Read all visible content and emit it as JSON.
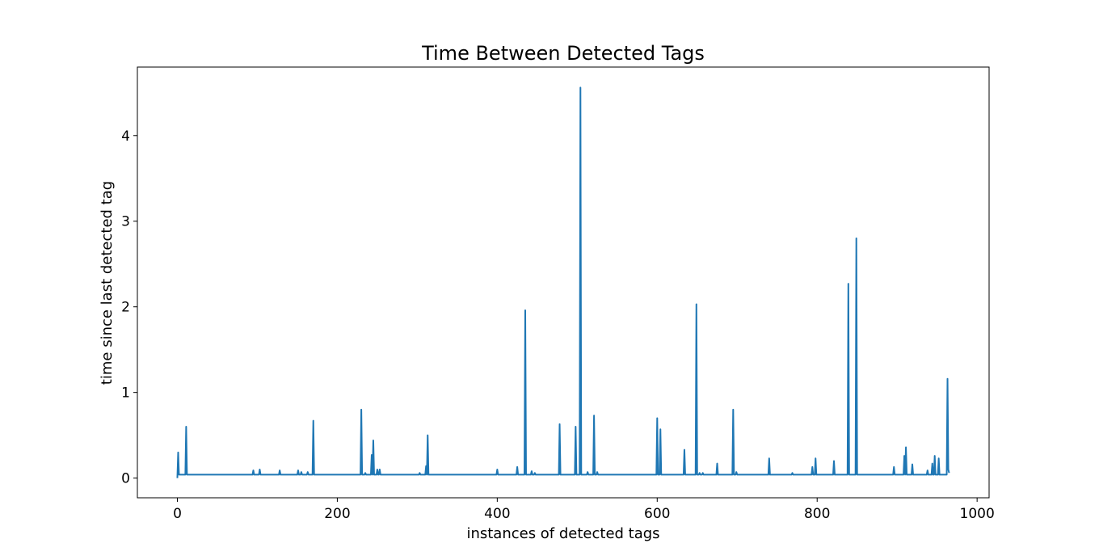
{
  "chart_data": {
    "type": "line",
    "title": "Time Between Detected Tags",
    "xlabel": "instances of detected tags",
    "ylabel": "time since last detected tag",
    "xlim": [
      -50,
      1015
    ],
    "ylim": [
      -0.23,
      4.8
    ],
    "xticks": [
      0,
      200,
      400,
      600,
      800,
      1000
    ],
    "yticks": [
      0,
      1,
      2,
      3,
      4
    ],
    "grid": false,
    "series": [
      {
        "color": "#1f77b4",
        "baseline": 0.04,
        "x_start": 0,
        "x_end": 965,
        "initial_value": 0.0,
        "spikes": [
          [
            1,
            0.3
          ],
          [
            11,
            0.6
          ],
          [
            95,
            0.09
          ],
          [
            103,
            0.1
          ],
          [
            128,
            0.09
          ],
          [
            151,
            0.09
          ],
          [
            155,
            0.07
          ],
          [
            163,
            0.07
          ],
          [
            170,
            0.67
          ],
          [
            230,
            0.8
          ],
          [
            235,
            0.06
          ],
          [
            243,
            0.27
          ],
          [
            245,
            0.44
          ],
          [
            250,
            0.1
          ],
          [
            253,
            0.1
          ],
          [
            303,
            0.06
          ],
          [
            311,
            0.14
          ],
          [
            313,
            0.5
          ],
          [
            400,
            0.1
          ],
          [
            425,
            0.13
          ],
          [
            435,
            1.96
          ],
          [
            443,
            0.08
          ],
          [
            447,
            0.06
          ],
          [
            478,
            0.63
          ],
          [
            498,
            0.6
          ],
          [
            504,
            4.56
          ],
          [
            513,
            0.07
          ],
          [
            521,
            0.73
          ],
          [
            525,
            0.07
          ],
          [
            600,
            0.7
          ],
          [
            604,
            0.57
          ],
          [
            634,
            0.33
          ],
          [
            649,
            2.03
          ],
          [
            653,
            0.06
          ],
          [
            657,
            0.06
          ],
          [
            675,
            0.17
          ],
          [
            695,
            0.8
          ],
          [
            699,
            0.07
          ],
          [
            740,
            0.23
          ],
          [
            769,
            0.06
          ],
          [
            794,
            0.13
          ],
          [
            798,
            0.23
          ],
          [
            821,
            0.2
          ],
          [
            839,
            2.27
          ],
          [
            849,
            2.8
          ],
          [
            896,
            0.13
          ],
          [
            909,
            0.26
          ],
          [
            911,
            0.36
          ],
          [
            919,
            0.16
          ],
          [
            938,
            0.09
          ],
          [
            944,
            0.17
          ],
          [
            947,
            0.26
          ],
          [
            952,
            0.23
          ],
          [
            963,
            1.16
          ],
          [
            964,
            0.1
          ],
          [
            965,
            0.06
          ]
        ]
      }
    ]
  }
}
